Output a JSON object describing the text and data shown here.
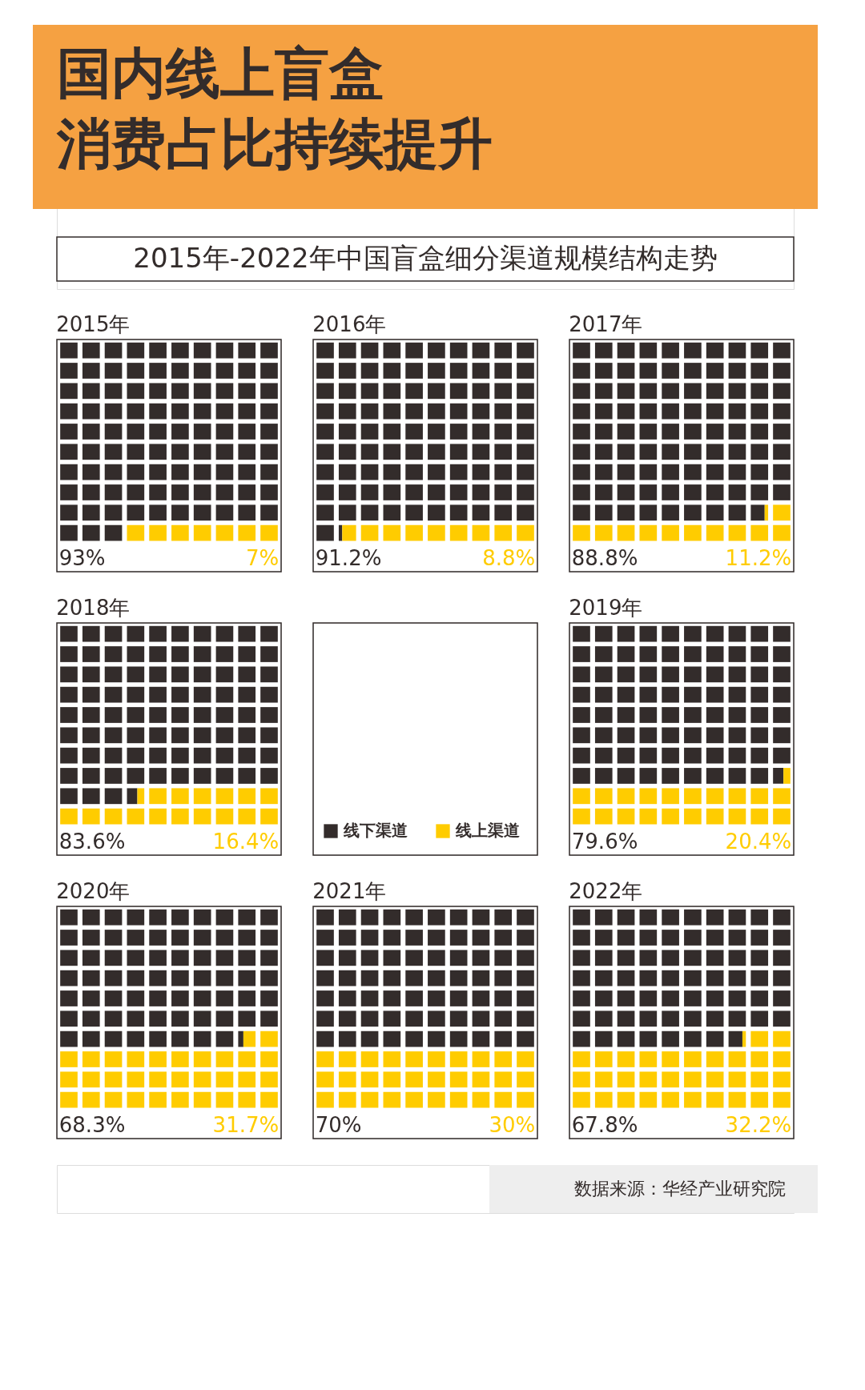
{
  "chart_data": [
    {
      "type": "other",
      "title": "国内线上盲盒消费占比持续提升",
      "subtitle": "2015年-2022年中国盲盒细分渠道规模结构走势",
      "annotations": [
        "数据来源：华经产业研究院"
      ]
    },
    {
      "type": "other",
      "title": "2015年",
      "values": [
        93,
        7
      ],
      "colors": [
        "#332c2b",
        "#ffcc00"
      ],
      "value_labels": [
        "93%",
        "7%"
      ]
    },
    {
      "type": "other",
      "title": "2016年",
      "values": [
        91.2,
        8.8
      ],
      "colors": [
        "#332c2b",
        "#ffcc00"
      ],
      "value_labels": [
        "91.2%",
        "8.8%"
      ]
    },
    {
      "type": "other",
      "title": "2017年",
      "values": [
        88.8,
        11.2
      ],
      "colors": [
        "#332c2b",
        "#ffcc00"
      ],
      "value_labels": [
        "88.8%",
        "11.2%"
      ]
    },
    {
      "type": "other",
      "title": "2018年",
      "values": [
        83.6,
        16.4
      ],
      "colors": [
        "#332c2b",
        "#ffcc00"
      ],
      "value_labels": [
        "83.6%",
        "16.4%"
      ]
    },
    {
      "type": "other",
      "categories": [
        "线下渠道",
        "线上渠道"
      ],
      "colors": [
        "#332c2b",
        "#ffcc00"
      ]
    },
    {
      "type": "other",
      "title": "2019年",
      "values": [
        79.6,
        20.4
      ],
      "colors": [
        "#332c2b",
        "#ffcc00"
      ],
      "value_labels": [
        "79.6%",
        "20.4%"
      ]
    },
    {
      "type": "other",
      "title": "2020年",
      "values": [
        68.3,
        31.7
      ],
      "colors": [
        "#332c2b",
        "#ffcc00"
      ],
      "value_labels": [
        "68.3%",
        "31.7%"
      ]
    },
    {
      "type": "other",
      "title": "2021年",
      "values": [
        70,
        30
      ],
      "colors": [
        "#332c2b",
        "#ffcc00"
      ],
      "value_labels": [
        "70%",
        "30%"
      ]
    },
    {
      "type": "other",
      "title": "2022年",
      "values": [
        67.8,
        32.2
      ],
      "colors": [
        "#332c2b",
        "#ffcc00"
      ],
      "value_labels": [
        "67.8%",
        "32.2%"
      ]
    }
  ]
}
